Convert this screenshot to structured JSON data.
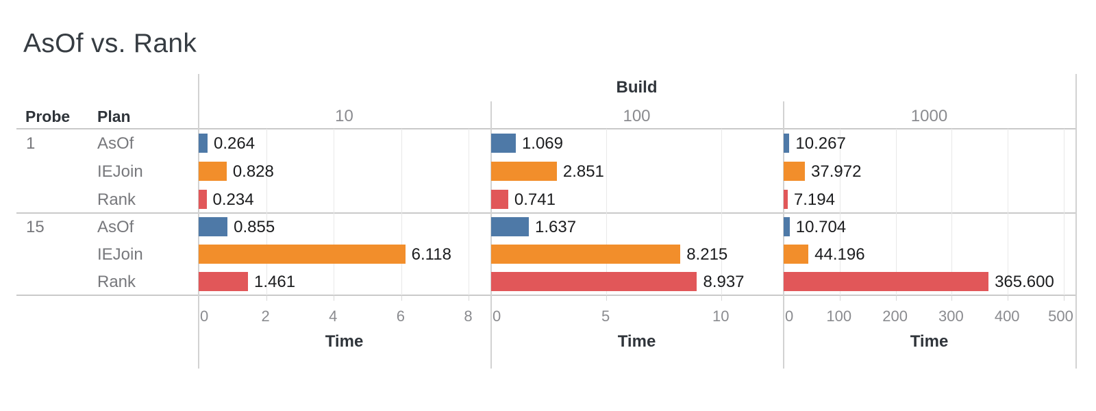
{
  "title": "AsOf vs. Rank",
  "row_headers": {
    "probe": "Probe",
    "plan": "Plan"
  },
  "facet_header": "Build",
  "axis_label": "Time",
  "colors": {
    "AsOf": "#4e79a7",
    "IEJoin": "#f28e2b",
    "Rank": "#e15759",
    "dark_text": "#2f343a",
    "gray_text": "#8a8b8f",
    "row_label_text": "#77787c",
    "value_text": "#1b1c1e",
    "gridline": "#e8e8e8",
    "divider": "#c9c9c9",
    "panel_border": "#d2d2d2"
  },
  "chart_data": {
    "type": "bar",
    "orientation": "horizontal",
    "title": "AsOf vs. Rank",
    "facet_column_field": "Build",
    "row_fields": [
      "Probe",
      "Plan"
    ],
    "xlabel": "Time",
    "grid": true,
    "legend": "none",
    "probes": [
      "1",
      "15"
    ],
    "plans": [
      "AsOf",
      "IEJoin",
      "Rank"
    ],
    "builds": [
      "10",
      "100",
      "1000"
    ],
    "panels": [
      {
        "build": "10",
        "axis_ticks": [
          0,
          2,
          4,
          6,
          8
        ],
        "tick_labels": [
          "0",
          "2",
          "4",
          "6",
          "8"
        ],
        "axis_max": 8.66,
        "bars": [
          {
            "probe": "1",
            "plan": "AsOf",
            "value": 0.264,
            "label": "0.264"
          },
          {
            "probe": "1",
            "plan": "IEJoin",
            "value": 0.828,
            "label": "0.828"
          },
          {
            "probe": "1",
            "plan": "Rank",
            "value": 0.234,
            "label": "0.234"
          },
          {
            "probe": "15",
            "plan": "AsOf",
            "value": 0.855,
            "label": "0.855"
          },
          {
            "probe": "15",
            "plan": "IEJoin",
            "value": 6.118,
            "label": "6.118"
          },
          {
            "probe": "15",
            "plan": "Rank",
            "value": 1.461,
            "label": "1.461"
          }
        ]
      },
      {
        "build": "100",
        "axis_ticks": [
          0,
          5,
          10
        ],
        "tick_labels": [
          "0",
          "5",
          "10"
        ],
        "axis_max": 12.7,
        "bars": [
          {
            "probe": "1",
            "plan": "AsOf",
            "value": 1.069,
            "label": "1.069"
          },
          {
            "probe": "1",
            "plan": "IEJoin",
            "value": 2.851,
            "label": "2.851"
          },
          {
            "probe": "1",
            "plan": "Rank",
            "value": 0.741,
            "label": "0.741"
          },
          {
            "probe": "15",
            "plan": "AsOf",
            "value": 1.637,
            "label": "1.637"
          },
          {
            "probe": "15",
            "plan": "IEJoin",
            "value": 8.215,
            "label": "8.215"
          },
          {
            "probe": "15",
            "plan": "Rank",
            "value": 8.937,
            "label": "8.937"
          }
        ]
      },
      {
        "build": "1000",
        "axis_ticks": [
          0,
          100,
          200,
          300,
          400,
          500
        ],
        "tick_labels": [
          "0",
          "100",
          "200",
          "300",
          "400",
          "500"
        ],
        "axis_max": 522,
        "bars": [
          {
            "probe": "1",
            "plan": "AsOf",
            "value": 10.267,
            "label": "10.267"
          },
          {
            "probe": "1",
            "plan": "IEJoin",
            "value": 37.972,
            "label": "37.972"
          },
          {
            "probe": "1",
            "plan": "Rank",
            "value": 7.194,
            "label": "7.194"
          },
          {
            "probe": "15",
            "plan": "AsOf",
            "value": 10.704,
            "label": "10.704"
          },
          {
            "probe": "15",
            "plan": "IEJoin",
            "value": 44.196,
            "label": "44.196"
          },
          {
            "probe": "15",
            "plan": "Rank",
            "value": 365.6,
            "label": "365.600"
          }
        ]
      }
    ]
  }
}
